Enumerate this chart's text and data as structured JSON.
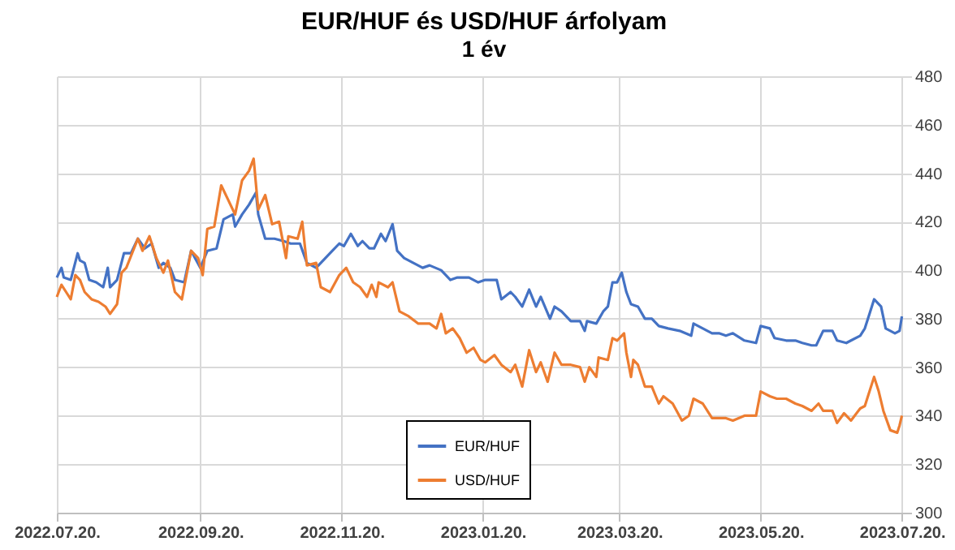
{
  "chart_data": {
    "type": "line",
    "title": "EUR/HUF és USD/HUF árfolyam",
    "subtitle": "1 év",
    "xlim": [
      "2022-07-20",
      "2023-07-24"
    ],
    "xticks": [
      {
        "value": "2022-07-20",
        "label": "2022.07.20."
      },
      {
        "value": "2022-09-20",
        "label": "2022.09.20."
      },
      {
        "value": "2022-11-20",
        "label": "2022.11.20."
      },
      {
        "value": "2023-01-20",
        "label": "2023.01.20."
      },
      {
        "value": "2023-03-20",
        "label": "2023.03.20."
      },
      {
        "value": "2023-05-20",
        "label": "2023.05.20."
      },
      {
        "value": "2023-07-20",
        "label": "2023.07.20."
      }
    ],
    "ylim": [
      300,
      480
    ],
    "yticks": [
      300,
      320,
      340,
      360,
      380,
      400,
      420,
      440,
      460,
      480
    ],
    "grid": true,
    "legend": "bottom right",
    "series": [
      {
        "name": "EUR/HUF",
        "color": "#4472c4",
        "x": [
          "2022-07-20",
          "2022-07-22",
          "2022-07-23",
          "2022-07-26",
          "2022-07-29",
          "2022-07-30",
          "2022-08-01",
          "2022-08-03",
          "2022-08-06",
          "2022-08-09",
          "2022-08-11",
          "2022-08-12",
          "2022-08-15",
          "2022-08-18",
          "2022-08-21",
          "2022-08-24",
          "2022-08-27",
          "2022-08-30",
          "2022-09-02",
          "2022-09-04",
          "2022-09-07",
          "2022-09-09",
          "2022-09-13",
          "2022-09-16",
          "2022-09-20",
          "2022-09-23",
          "2022-09-27",
          "2022-09-30",
          "2022-10-04",
          "2022-10-05",
          "2022-10-08",
          "2022-10-11",
          "2022-10-14",
          "2022-10-15",
          "2022-10-18",
          "2022-10-22",
          "2022-10-26",
          "2022-10-29",
          "2022-11-02",
          "2022-11-05",
          "2022-11-09",
          "2022-11-13",
          "2022-11-16",
          "2022-11-19",
          "2022-11-21",
          "2022-11-24",
          "2022-11-27",
          "2022-11-29",
          "2022-12-02",
          "2022-12-04",
          "2022-12-07",
          "2022-12-09",
          "2022-12-12",
          "2022-12-14",
          "2022-12-17",
          "2022-12-21",
          "2022-12-25",
          "2022-12-28",
          "2023-01-02",
          "2023-01-06",
          "2023-01-09",
          "2023-01-14",
          "2023-01-18",
          "2023-01-21",
          "2023-01-26",
          "2023-01-28",
          "2023-02-01",
          "2023-02-03",
          "2023-02-06",
          "2023-02-09",
          "2023-02-12",
          "2023-02-14",
          "2023-02-18",
          "2023-02-20",
          "2023-02-23",
          "2023-02-27",
          "2023-03-03",
          "2023-03-05",
          "2023-03-06",
          "2023-03-10",
          "2023-03-13",
          "2023-03-15",
          "2023-03-17",
          "2023-03-19",
          "2023-03-21",
          "2023-03-23",
          "2023-03-25",
          "2023-03-28",
          "2023-03-31",
          "2023-04-03",
          "2023-04-06",
          "2023-04-10",
          "2023-04-15",
          "2023-04-20",
          "2023-04-21",
          "2023-04-25",
          "2023-04-29",
          "2023-05-02",
          "2023-05-05",
          "2023-05-08",
          "2023-05-13",
          "2023-05-18",
          "2023-05-20",
          "2023-05-24",
          "2023-05-26",
          "2023-05-31",
          "2023-06-04",
          "2023-06-07",
          "2023-06-11",
          "2023-06-13",
          "2023-06-16",
          "2023-06-20",
          "2023-06-22",
          "2023-06-26",
          "2023-06-28",
          "2023-07-02",
          "2023-07-04",
          "2023-07-06",
          "2023-07-08",
          "2023-07-11",
          "2023-07-13",
          "2023-07-17",
          "2023-07-19",
          "2023-07-20"
        ],
        "values": [
          397,
          401,
          397,
          396,
          407,
          404,
          403,
          396,
          395,
          393,
          401,
          393,
          396,
          407,
          407,
          413,
          409,
          411,
          401,
          403,
          401,
          396,
          395,
          408,
          401,
          408,
          409,
          421,
          423,
          418,
          423,
          427,
          432,
          423,
          413,
          413,
          412,
          411,
          411,
          403,
          401,
          405,
          408,
          411,
          410,
          415,
          410,
          412,
          409,
          409,
          415,
          412,
          419,
          408,
          405,
          403,
          401,
          402,
          400,
          396,
          397,
          397,
          395,
          396,
          396,
          388,
          391,
          389,
          385,
          392,
          385,
          389,
          380,
          385,
          383,
          379,
          379,
          375,
          379,
          378,
          383,
          385,
          395,
          395,
          399,
          391,
          386,
          385,
          380,
          380,
          377,
          376,
          375,
          373,
          378,
          376,
          374,
          374,
          373,
          374,
          371,
          370,
          377,
          376,
          372,
          371,
          371,
          370,
          369,
          369,
          375,
          375,
          371,
          370,
          371,
          373,
          376,
          382,
          388,
          385,
          376,
          374,
          375,
          381
        ]
      },
      {
        "name": "USD/HUF",
        "color": "#ed7d31",
        "x": [
          "2022-07-20",
          "2022-07-22",
          "2022-07-24",
          "2022-07-26",
          "2022-07-28",
          "2022-07-30",
          "2022-08-01",
          "2022-08-04",
          "2022-08-07",
          "2022-08-10",
          "2022-08-12",
          "2022-08-15",
          "2022-08-17",
          "2022-08-19",
          "2022-08-24",
          "2022-08-26",
          "2022-08-29",
          "2022-09-01",
          "2022-09-04",
          "2022-09-06",
          "2022-09-09",
          "2022-09-12",
          "2022-09-16",
          "2022-09-19",
          "2022-09-21",
          "2022-09-23",
          "2022-09-26",
          "2022-09-29",
          "2022-10-02",
          "2022-10-05",
          "2022-10-08",
          "2022-10-11",
          "2022-10-13",
          "2022-10-15",
          "2022-10-18",
          "2022-10-21",
          "2022-10-24",
          "2022-10-27",
          "2022-10-28",
          "2022-11-01",
          "2022-11-03",
          "2022-11-05",
          "2022-11-09",
          "2022-11-11",
          "2022-11-15",
          "2022-11-19",
          "2022-11-22",
          "2022-11-25",
          "2022-11-28",
          "2022-12-01",
          "2022-12-03",
          "2022-12-05",
          "2022-12-06",
          "2022-12-10",
          "2022-12-12",
          "2022-12-15",
          "2022-12-19",
          "2022-12-23",
          "2022-12-28",
          "2022-12-31",
          "2023-01-02",
          "2023-01-04",
          "2023-01-07",
          "2023-01-10",
          "2023-01-13",
          "2023-01-16",
          "2023-01-19",
          "2023-01-21",
          "2023-01-25",
          "2023-01-28",
          "2023-02-01",
          "2023-02-03",
          "2023-02-06",
          "2023-02-09",
          "2023-02-12",
          "2023-02-14",
          "2023-02-17",
          "2023-02-20",
          "2023-02-23",
          "2023-02-27",
          "2023-03-03",
          "2023-03-05",
          "2023-03-07",
          "2023-03-10",
          "2023-03-11",
          "2023-03-15",
          "2023-03-17",
          "2023-03-19",
          "2023-03-22",
          "2023-03-23",
          "2023-03-25",
          "2023-03-26",
          "2023-03-28",
          "2023-03-31",
          "2023-04-03",
          "2023-04-06",
          "2023-04-08",
          "2023-04-12",
          "2023-04-16",
          "2023-04-19",
          "2023-04-21",
          "2023-04-25",
          "2023-04-29",
          "2023-05-02",
          "2023-05-05",
          "2023-05-08",
          "2023-05-13",
          "2023-05-18",
          "2023-05-20",
          "2023-05-24",
          "2023-05-27",
          "2023-05-31",
          "2023-06-04",
          "2023-06-07",
          "2023-06-11",
          "2023-06-14",
          "2023-06-16",
          "2023-06-20",
          "2023-06-22",
          "2023-06-25",
          "2023-06-28",
          "2023-07-02",
          "2023-07-04",
          "2023-07-08",
          "2023-07-10",
          "2023-07-12",
          "2023-07-15",
          "2023-07-18",
          "2023-07-19",
          "2023-07-20"
        ],
        "values": [
          389,
          394,
          391,
          388,
          398,
          396,
          391,
          388,
          387,
          385,
          382,
          386,
          399,
          401,
          413,
          408,
          414,
          405,
          399,
          404,
          391,
          388,
          408,
          405,
          398,
          417,
          418,
          435,
          429,
          423,
          437,
          441,
          446,
          425,
          431,
          419,
          420,
          405,
          414,
          413,
          420,
          402,
          403,
          393,
          391,
          398,
          401,
          395,
          393,
          389,
          394,
          389,
          395,
          393,
          395,
          383,
          381,
          378,
          378,
          376,
          382,
          374,
          376,
          372,
          366,
          368,
          363,
          362,
          365,
          361,
          358,
          361,
          352,
          367,
          358,
          362,
          354,
          366,
          361,
          361,
          360,
          354,
          360,
          356,
          364,
          363,
          372,
          371,
          374,
          366,
          356,
          363,
          361,
          352,
          352,
          345,
          348,
          345,
          338,
          340,
          347,
          345,
          339,
          339,
          339,
          338,
          340,
          340,
          350,
          348,
          347,
          347,
          345,
          344,
          342,
          345,
          342,
          342,
          337,
          341,
          338,
          343,
          344,
          356,
          350,
          342,
          334,
          333,
          336,
          340
        ]
      }
    ]
  }
}
